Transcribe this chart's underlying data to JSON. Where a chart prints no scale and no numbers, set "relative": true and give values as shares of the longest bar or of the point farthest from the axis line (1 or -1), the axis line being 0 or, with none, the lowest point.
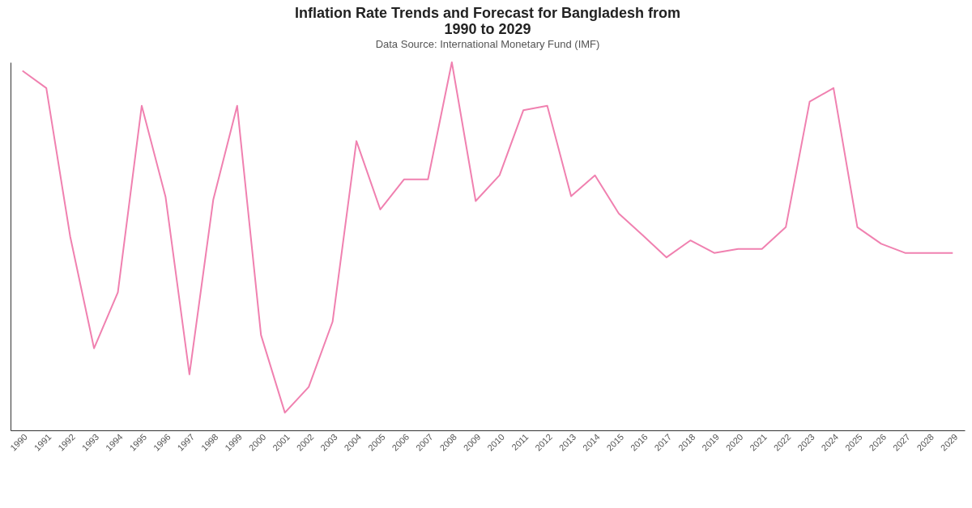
{
  "chart_data": {
    "type": "line",
    "title": "Inflation Rate Trends and Forecast for Bangladesh from 1990 to 2029",
    "subtitle": "Data Source: International Monetary Fund (IMF)",
    "relative": true,
    "grid": false,
    "categories": [
      "1990",
      "1991",
      "1992",
      "1993",
      "1994",
      "1995",
      "1996",
      "1997",
      "1998",
      "1999",
      "2000",
      "2001",
      "2002",
      "2003",
      "2004",
      "2005",
      "2006",
      "2007",
      "2008",
      "2009",
      "2010",
      "2011",
      "2012",
      "2013",
      "2014",
      "2015",
      "2016",
      "2017",
      "2018",
      "2019",
      "2020",
      "2021",
      "2022",
      "2023",
      "2024",
      "2025",
      "2026",
      "2027",
      "2028",
      "2029"
    ],
    "series": [
      {
        "color": "#f081b0",
        "values": [
          0.977,
          0.93,
          0.527,
          0.223,
          0.375,
          0.882,
          0.634,
          0.152,
          0.627,
          0.882,
          0.259,
          0.048,
          0.118,
          0.295,
          0.786,
          0.6,
          0.682,
          0.682,
          1,
          0.623,
          0.693,
          0.87,
          0.882,
          0.636,
          0.693,
          0.589,
          0.53,
          0.47,
          0.516,
          0.482,
          0.493,
          0.493,
          0.552,
          0.893,
          0.93,
          0.552,
          0.507,
          0.482,
          0.482,
          0.482
        ]
      }
    ]
  }
}
